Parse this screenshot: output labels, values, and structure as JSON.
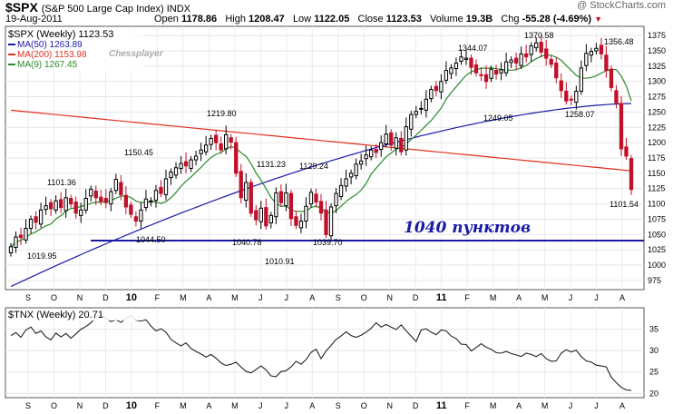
{
  "header": {
    "ticker": "$SPX",
    "description": "(S&P 500 Large Cap Index) INDX",
    "date": "19-Aug-2011",
    "open_label": "Open",
    "open": "1178.86",
    "high_label": "High",
    "high": "1208.47",
    "low_label": "Low",
    "low": "1122.05",
    "close_label": "Close",
    "close": "1123.53",
    "volume_label": "Volume",
    "volume": "19.3B",
    "chg_label": "Chg",
    "chg": "-55.28 (-4.69%)",
    "credit": "@ StockCharts.com"
  },
  "chart_data": [
    {
      "type": "candlestick",
      "title": "$SPX (Weekly) 1123.53",
      "legend": [
        {
          "name": "MA(50) 1263.89",
          "color": "#1a1aa6"
        },
        {
          "name": "MA(200) 1153.98",
          "color": "#e03020"
        },
        {
          "name": "MA(9) 1267.45",
          "color": "#2a8a2a"
        }
      ],
      "watermark": "Chessplayer",
      "ylim": [
        960,
        1390
      ],
      "y_ticks": [
        975,
        1000,
        1025,
        1050,
        1075,
        1100,
        1125,
        1150,
        1175,
        1200,
        1225,
        1250,
        1275,
        1300,
        1325,
        1350,
        1375
      ],
      "x_ticks": [
        "S",
        "O",
        "N",
        "D",
        "10",
        "F",
        "M",
        "A",
        "M",
        "J",
        "J",
        "A",
        "S",
        "O",
        "N",
        "D",
        "11",
        "F",
        "M",
        "A",
        "M",
        "J",
        "J",
        "A"
      ],
      "x_ticks_bold": [
        "10",
        "11"
      ],
      "closes": [
        1030,
        1046,
        1045,
        1060,
        1075,
        1070,
        1090,
        1097,
        1092,
        1105,
        1094,
        1110,
        1100,
        1085,
        1090,
        1109,
        1124,
        1110,
        1104,
        1102,
        1120,
        1140,
        1115,
        1095,
        1083,
        1072,
        1090,
        1108,
        1105,
        1122,
        1117,
        1141,
        1152,
        1159,
        1166,
        1162,
        1172,
        1178,
        1188,
        1196,
        1207,
        1200,
        1188,
        1213,
        1201,
        1150,
        1110,
        1135,
        1085,
        1074,
        1093,
        1064,
        1081,
        1118,
        1102,
        1118,
        1076,
        1065,
        1072,
        1096,
        1119,
        1103,
        1085,
        1050,
        1095,
        1117,
        1130,
        1141,
        1150,
        1165,
        1170,
        1180,
        1188,
        1184,
        1200,
        1214,
        1196,
        1208,
        1185,
        1226,
        1246,
        1251,
        1256,
        1271,
        1287,
        1285,
        1300,
        1318,
        1322,
        1330,
        1340,
        1338,
        1323,
        1314,
        1310,
        1300,
        1320,
        1312,
        1319,
        1332,
        1335,
        1330,
        1345,
        1340,
        1358,
        1363,
        1348,
        1338,
        1328,
        1306,
        1285,
        1268,
        1270,
        1284,
        1322,
        1346,
        1349,
        1354,
        1345,
        1318,
        1290,
        1265,
        1190,
        1178,
        1123.53
      ],
      "annotations": [
        "1019.95",
        "1101.36",
        "1150.45",
        "1044.50",
        "1219.80",
        "1040.78",
        "1131.23",
        "1010.91",
        "1129.24",
        "1039.70",
        "1344.07",
        "1249.05",
        "1370.58",
        "1258.07",
        "1356.48",
        "1101.54"
      ],
      "horizontal_line": {
        "value": 1040,
        "label": "1040 пунктов",
        "color": "#1a1aa6"
      }
    },
    {
      "type": "line",
      "title": "$TNX (Weekly) 20.71",
      "ylim": [
        19,
        40
      ],
      "y_ticks": [
        20,
        25,
        30,
        35
      ],
      "x_ticks": [
        "S",
        "O",
        "N",
        "D",
        "10",
        "F",
        "M",
        "A",
        "M",
        "J",
        "J",
        "A",
        "S",
        "O",
        "N",
        "D",
        "11",
        "F",
        "M",
        "A",
        "M",
        "J",
        "J",
        "A"
      ],
      "values": [
        33.5,
        34.2,
        33.1,
        34.8,
        35.5,
        34,
        34.6,
        33.2,
        32.5,
        34.1,
        33.2,
        34,
        32.9,
        33.9,
        35,
        35.6,
        36.5,
        37.8,
        38.3,
        37.5,
        36.8,
        37.2,
        36.6,
        37.5,
        38.2,
        37.1,
        36.9,
        37.2,
        35.7,
        34.6,
        35.1,
        34.3,
        32.6,
        31.8,
        31.1,
        31.8,
        30.5,
        29.8,
        29.2,
        28.5,
        29.1,
        28.2,
        27.1,
        26.5,
        26.8,
        27.3,
        26.2,
        25.1,
        24.8,
        25.6,
        26.4,
        25.5,
        24.1,
        23.9,
        25.1,
        25.3,
        26.2,
        27.5,
        26.8,
        27.9,
        29.6,
        30.3,
        28.1,
        29.9,
        31.2,
        32.6,
        33.4,
        34.4,
        33.5,
        33.1,
        33.6,
        34.3,
        35.2,
        36.5,
        35.5,
        36.1,
        35.5,
        34.9,
        36,
        34.6,
        33.4,
        32.1,
        34.8,
        35.1,
        34.3,
        33.7,
        34.8,
        34.6,
        33.4,
        32.8,
        31.5,
        31.4,
        29.9,
        30.7,
        31.6,
        30.8,
        30.3,
        29.5,
        29.4,
        29.8,
        29.3,
        29,
        28.6,
        29.4,
        29.1,
        28.6,
        29.3,
        28.1,
        27.5,
        27.6,
        29.4,
        30.2,
        29.7,
        30.1,
        28.6,
        27.6,
        27.3,
        26.6,
        26.4,
        26.2,
        23.8,
        22.5,
        21.4,
        20.8,
        20.71
      ]
    }
  ]
}
